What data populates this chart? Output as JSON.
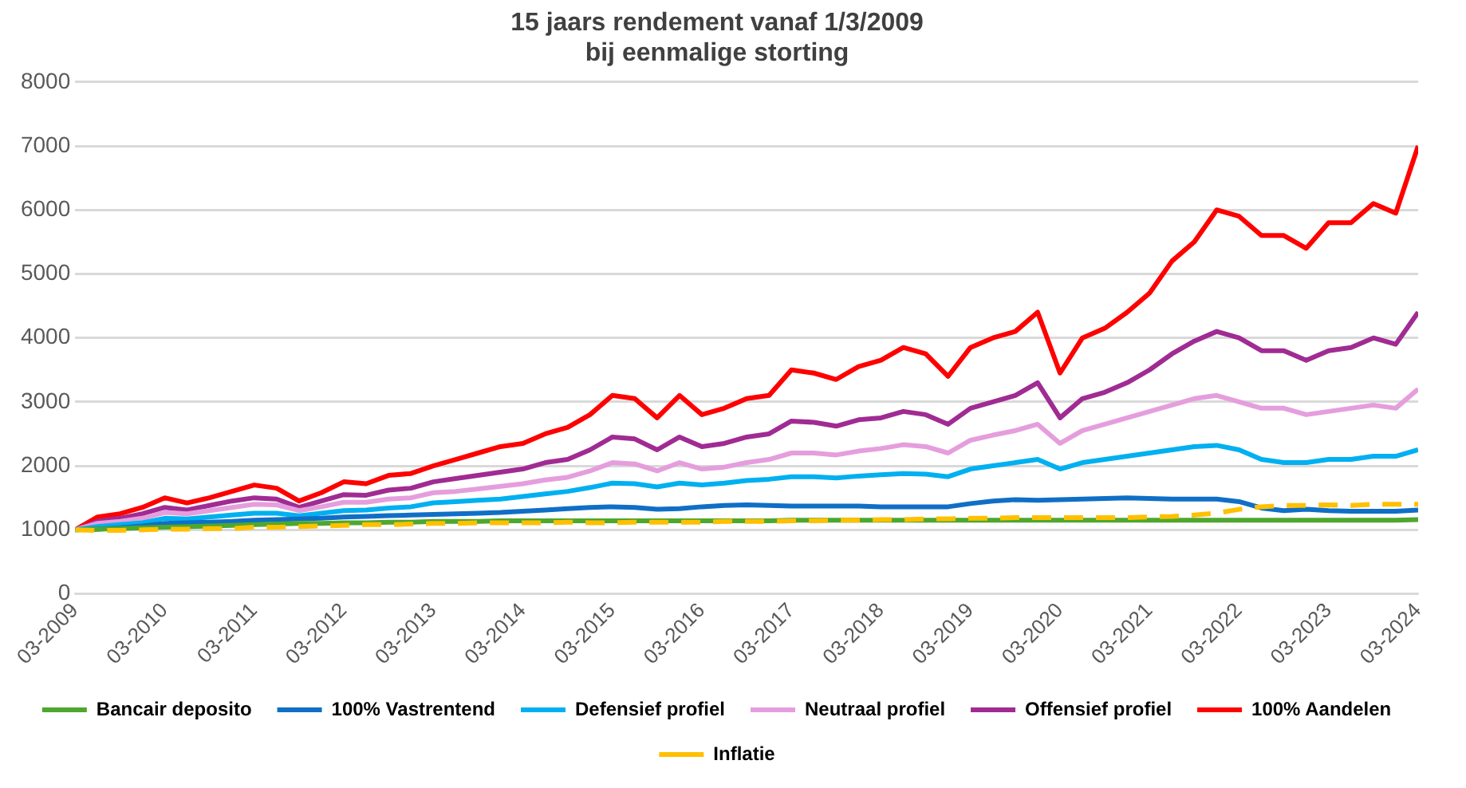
{
  "chart_data": {
    "type": "line",
    "title": "15 jaars rendement vanaf 1/3/2009\nbij eenmalige storting",
    "x": [
      "2009-03",
      "2009-06",
      "2009-09",
      "2009-12",
      "2010-03",
      "2010-06",
      "2010-09",
      "2010-12",
      "2011-03",
      "2011-06",
      "2011-09",
      "2011-12",
      "2012-03",
      "2012-06",
      "2012-09",
      "2012-12",
      "2013-03",
      "2013-06",
      "2013-09",
      "2013-12",
      "2014-03",
      "2014-06",
      "2014-09",
      "2014-12",
      "2015-03",
      "2015-06",
      "2015-09",
      "2015-12",
      "2016-03",
      "2016-06",
      "2016-09",
      "2016-12",
      "2017-03",
      "2017-06",
      "2017-09",
      "2017-12",
      "2018-03",
      "2018-06",
      "2018-09",
      "2018-12",
      "2019-03",
      "2019-06",
      "2019-09",
      "2019-12",
      "2020-03",
      "2020-06",
      "2020-09",
      "2020-12",
      "2021-03",
      "2021-06",
      "2021-09",
      "2021-12",
      "2022-03",
      "2022-06",
      "2022-09",
      "2022-12",
      "2023-03",
      "2023-06",
      "2023-09",
      "2023-12",
      "2024-03"
    ],
    "series": [
      {
        "name": "Bancair deposito",
        "color": "#4ea72e",
        "values": [
          1000,
          1010,
          1020,
          1030,
          1040,
          1050,
          1060,
          1070,
          1080,
          1090,
          1100,
          1100,
          1110,
          1110,
          1120,
          1120,
          1130,
          1130,
          1130,
          1140,
          1140,
          1140,
          1140,
          1140,
          1140,
          1140,
          1140,
          1140,
          1140,
          1140,
          1140,
          1140,
          1150,
          1150,
          1150,
          1150,
          1150,
          1150,
          1150,
          1150,
          1150,
          1150,
          1150,
          1150,
          1150,
          1150,
          1150,
          1150,
          1150,
          1150,
          1150,
          1150,
          1150,
          1150,
          1150,
          1150,
          1150,
          1150,
          1150,
          1150,
          1160
        ]
      },
      {
        "name": "100% Vastrentend",
        "color": "#0f6fc6",
        "values": [
          1000,
          1010,
          1030,
          1060,
          1100,
          1110,
          1120,
          1130,
          1150,
          1160,
          1170,
          1180,
          1200,
          1210,
          1220,
          1230,
          1240,
          1250,
          1260,
          1270,
          1290,
          1310,
          1330,
          1350,
          1360,
          1350,
          1320,
          1330,
          1360,
          1380,
          1390,
          1380,
          1370,
          1370,
          1370,
          1370,
          1360,
          1360,
          1360,
          1360,
          1410,
          1450,
          1470,
          1460,
          1470,
          1480,
          1490,
          1500,
          1490,
          1480,
          1480,
          1480,
          1440,
          1340,
          1300,
          1320,
          1300,
          1290,
          1290,
          1290,
          1310
        ]
      },
      {
        "name": "Defensief profiel",
        "color": "#00b0f0",
        "values": [
          1000,
          1050,
          1080,
          1110,
          1180,
          1170,
          1200,
          1230,
          1260,
          1260,
          1220,
          1260,
          1300,
          1310,
          1340,
          1360,
          1420,
          1440,
          1460,
          1480,
          1520,
          1560,
          1600,
          1660,
          1730,
          1720,
          1670,
          1730,
          1700,
          1730,
          1770,
          1790,
          1830,
          1830,
          1810,
          1840,
          1860,
          1880,
          1870,
          1830,
          1950,
          2000,
          2050,
          2100,
          1950,
          2050,
          2100,
          2150,
          2200,
          2250,
          2300,
          2320,
          2250,
          2100,
          2050,
          2050,
          2100,
          2100,
          2150,
          2150,
          2250
        ]
      },
      {
        "name": "Neutraal profiel",
        "color": "#e59edd",
        "values": [
          1000,
          1100,
          1130,
          1180,
          1270,
          1250,
          1300,
          1350,
          1400,
          1390,
          1300,
          1360,
          1430,
          1430,
          1480,
          1500,
          1580,
          1600,
          1640,
          1680,
          1720,
          1780,
          1820,
          1920,
          2050,
          2030,
          1920,
          2050,
          1950,
          1980,
          2050,
          2100,
          2200,
          2200,
          2170,
          2230,
          2270,
          2330,
          2300,
          2200,
          2400,
          2480,
          2550,
          2650,
          2350,
          2550,
          2650,
          2750,
          2850,
          2950,
          3050,
          3100,
          3000,
          2900,
          2900,
          2800,
          2850,
          2900,
          2950,
          2900,
          3200
        ]
      },
      {
        "name": "Offensief profiel",
        "color": "#a02b93",
        "values": [
          1000,
          1130,
          1180,
          1250,
          1350,
          1310,
          1380,
          1450,
          1500,
          1480,
          1350,
          1450,
          1550,
          1540,
          1620,
          1650,
          1750,
          1800,
          1850,
          1900,
          1950,
          2050,
          2100,
          2250,
          2450,
          2420,
          2250,
          2450,
          2300,
          2350,
          2450,
          2500,
          2700,
          2680,
          2620,
          2720,
          2750,
          2850,
          2800,
          2650,
          2900,
          3000,
          3100,
          3300,
          2750,
          3050,
          3150,
          3300,
          3500,
          3750,
          3950,
          4100,
          4000,
          3800,
          3800,
          3650,
          3800,
          3850,
          4000,
          3900,
          4400
        ]
      },
      {
        "name": "100% Aandelen",
        "color": "#ff0000",
        "values": [
          1000,
          1200,
          1250,
          1350,
          1500,
          1420,
          1500,
          1600,
          1700,
          1650,
          1450,
          1580,
          1750,
          1720,
          1850,
          1880,
          2000,
          2100,
          2200,
          2300,
          2350,
          2500,
          2600,
          2800,
          3100,
          3050,
          2750,
          3100,
          2800,
          2900,
          3050,
          3100,
          3500,
          3450,
          3350,
          3550,
          3650,
          3850,
          3750,
          3400,
          3850,
          4000,
          4100,
          4400,
          3450,
          4000,
          4150,
          4400,
          4700,
          5200,
          5500,
          6000,
          5900,
          5600,
          5600,
          5400,
          5800,
          5800,
          6100,
          5950,
          7000
        ]
      },
      {
        "name": "Inflatie",
        "color": "#ffc000",
        "line_style": "dashed",
        "values": [
          1000,
          990,
          990,
          1000,
          1010,
          1010,
          1020,
          1020,
          1040,
          1040,
          1050,
          1060,
          1070,
          1080,
          1080,
          1090,
          1100,
          1100,
          1110,
          1110,
          1110,
          1110,
          1120,
          1110,
          1110,
          1120,
          1120,
          1120,
          1120,
          1130,
          1130,
          1130,
          1140,
          1140,
          1150,
          1150,
          1160,
          1160,
          1170,
          1170,
          1180,
          1180,
          1190,
          1190,
          1190,
          1190,
          1190,
          1190,
          1200,
          1210,
          1230,
          1260,
          1320,
          1360,
          1380,
          1380,
          1390,
          1380,
          1400,
          1400,
          1400
        ]
      }
    ],
    "xlim": [
      "2009-03",
      "2024-03"
    ],
    "xticks": [
      {
        "value": "2009-03",
        "label": "03-2009"
      },
      {
        "value": "2010-03",
        "label": "03-2010"
      },
      {
        "value": "2011-03",
        "label": "03-2011"
      },
      {
        "value": "2012-03",
        "label": "03-2012"
      },
      {
        "value": "2013-03",
        "label": "03-2013"
      },
      {
        "value": "2014-03",
        "label": "03-2014"
      },
      {
        "value": "2015-03",
        "label": "03-2015"
      },
      {
        "value": "2016-03",
        "label": "03-2016"
      },
      {
        "value": "2017-03",
        "label": "03-2017"
      },
      {
        "value": "2018-03",
        "label": "03-2018"
      },
      {
        "value": "2019-03",
        "label": "03-2019"
      },
      {
        "value": "2020-03",
        "label": "03-2020"
      },
      {
        "value": "2021-03",
        "label": "03-2021"
      },
      {
        "value": "2022-03",
        "label": "03-2022"
      },
      {
        "value": "2023-03",
        "label": "03-2023"
      },
      {
        "value": "2024-03",
        "label": "03-2024"
      }
    ],
    "ylim": [
      0,
      8000
    ],
    "yticks": [
      0,
      1000,
      2000,
      3000,
      4000,
      5000,
      6000,
      7000,
      8000
    ],
    "grid": "y",
    "legend": "bottom",
    "marker": "none",
    "line_style": "solid"
  }
}
